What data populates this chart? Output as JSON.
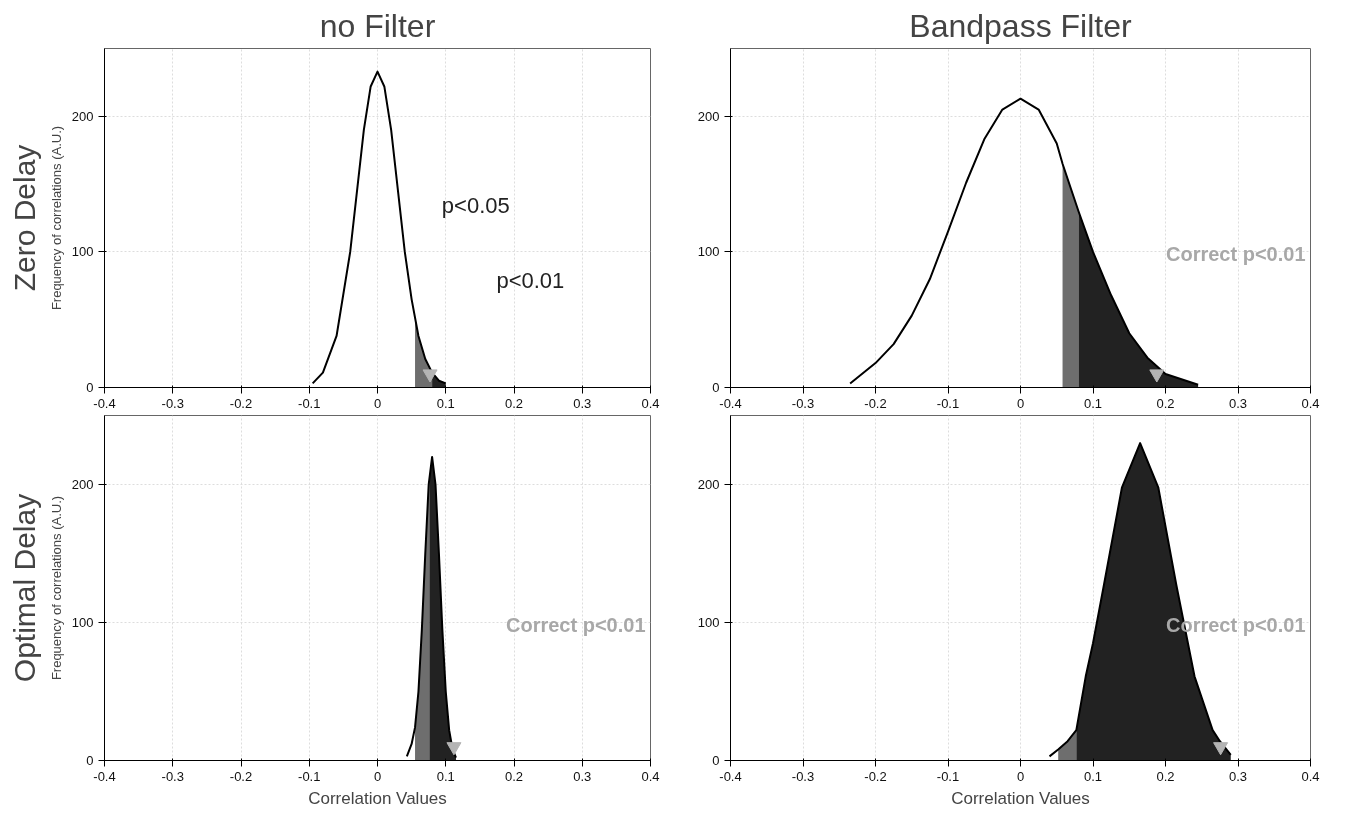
{
  "chart_data": [
    {
      "type": "line",
      "title": "no Filter",
      "subtitle": "Zero Delay",
      "ylabel": "Frequency of correlations (A.U.)",
      "xlim": [
        -0.4,
        0.4
      ],
      "ylim": [
        0,
        250
      ],
      "xticks": [
        -0.4,
        -0.3,
        -0.2,
        -0.1,
        0,
        0.1,
        0.2,
        0.3,
        0.4
      ],
      "yticks": [
        0,
        100,
        200
      ],
      "grid": true,
      "series": [
        {
          "type": "area",
          "color": "#6e6e6e",
          "x": [
            0.055,
            0.06,
            0.07,
            0.08
          ],
          "values": [
            50,
            38,
            21,
            11
          ]
        },
        {
          "type": "area",
          "color": "#222222",
          "x": [
            0.08,
            0.09,
            0.1
          ],
          "values": [
            11,
            5,
            3
          ]
        },
        {
          "color": "#000000",
          "x": [
            -0.095,
            -0.08,
            -0.06,
            -0.04,
            -0.03,
            -0.02,
            -0.01,
            0,
            0.01,
            0.02,
            0.03,
            0.04,
            0.05,
            0.06,
            0.07,
            0.08,
            0.09,
            0.1
          ],
          "values": [
            3,
            11,
            38,
            100,
            145,
            190,
            222,
            233,
            222,
            190,
            145,
            100,
            65,
            38,
            21,
            11,
            5,
            3
          ]
        },
        {
          "type": "scatter",
          "marker": "triangle",
          "color": "#b4b4b4",
          "x": [
            0.077
          ],
          "values": [
            10
          ]
        }
      ],
      "annotations": [
        "p<0.05",
        "p<0.01"
      ]
    },
    {
      "type": "line",
      "title": "Bandpass Filter",
      "xlim": [
        -0.4,
        0.4
      ],
      "ylim": [
        0,
        250
      ],
      "xticks": [
        -0.4,
        -0.3,
        -0.2,
        -0.1,
        0,
        0.1,
        0.2,
        0.3,
        0.4
      ],
      "yticks": [
        0,
        100,
        200
      ],
      "grid": true,
      "series": [
        {
          "type": "area",
          "color": "#6e6e6e",
          "x": [
            0.058,
            0.08
          ],
          "values": [
            165,
            130
          ]
        },
        {
          "type": "area",
          "color": "#222222",
          "x": [
            0.08,
            0.1,
            0.125,
            0.15,
            0.175,
            0.2,
            0.245
          ],
          "values": [
            130,
            100,
            68,
            40,
            22,
            10,
            2
          ]
        },
        {
          "color": "#000000",
          "x": [
            -0.235,
            -0.2,
            -0.175,
            -0.15,
            -0.125,
            -0.1,
            -0.075,
            -0.05,
            -0.025,
            0,
            0.025,
            0.05,
            0.058,
            0.08,
            0.1,
            0.125,
            0.15,
            0.175,
            0.2,
            0.245
          ],
          "values": [
            3,
            18,
            32,
            53,
            80,
            115,
            151,
            183,
            205,
            213,
            205,
            180,
            165,
            130,
            100,
            68,
            40,
            22,
            10,
            2
          ]
        },
        {
          "type": "scatter",
          "marker": "triangle",
          "color": "#b4b4b4",
          "x": [
            0.188
          ],
          "values": [
            10
          ]
        }
      ],
      "annotations": [
        "Correct p<0.01"
      ]
    },
    {
      "type": "line",
      "subtitle": "Optimal Delay",
      "xlabel": "Correlation Values",
      "ylabel": "Frequency of correlations (A.U.)",
      "xlim": [
        -0.4,
        0.4
      ],
      "ylim": [
        0,
        250
      ],
      "xticks": [
        -0.4,
        -0.3,
        -0.2,
        -0.1,
        0,
        0.1,
        0.2,
        0.3,
        0.4
      ],
      "yticks": [
        0,
        100,
        200
      ],
      "grid": true,
      "series": [
        {
          "type": "area",
          "color": "#6e6e6e",
          "x": [
            0.055,
            0.06,
            0.065,
            0.07,
            0.075,
            0.076
          ],
          "values": [
            24,
            50,
            95,
            150,
            200,
            205
          ]
        },
        {
          "type": "area",
          "color": "#222222",
          "x": [
            0.076,
            0.08,
            0.085,
            0.09,
            0.095,
            0.1,
            0.105,
            0.11,
            0.115
          ],
          "values": [
            205,
            220,
            200,
            150,
            95,
            50,
            22,
            8,
            2
          ]
        },
        {
          "color": "#000000",
          "x": [
            0.043,
            0.05,
            0.055,
            0.06,
            0.065,
            0.07,
            0.075,
            0.08,
            0.085,
            0.09,
            0.095,
            0.1,
            0.105,
            0.11,
            0.115
          ],
          "values": [
            3,
            12,
            24,
            50,
            95,
            150,
            200,
            220,
            200,
            150,
            95,
            50,
            22,
            8,
            2
          ]
        },
        {
          "type": "scatter",
          "marker": "triangle",
          "color": "#b4b4b4",
          "x": [
            0.112
          ],
          "values": [
            10
          ]
        }
      ],
      "annotations": [
        "Correct p<0.01"
      ]
    },
    {
      "type": "line",
      "xlabel": "Correlation Values",
      "xlim": [
        -0.4,
        0.4
      ],
      "ylim": [
        0,
        250
      ],
      "xticks": [
        -0.4,
        -0.3,
        -0.2,
        -0.1,
        0,
        0.1,
        0.2,
        0.3,
        0.4
      ],
      "yticks": [
        0,
        100,
        200
      ],
      "grid": true,
      "series": [
        {
          "type": "area",
          "color": "#6e6e6e",
          "x": [
            0.052,
            0.065,
            0.077
          ],
          "values": [
            8,
            14,
            22
          ]
        },
        {
          "type": "area",
          "color": "#222222",
          "x": [
            0.077,
            0.09,
            0.1,
            0.115,
            0.14,
            0.165,
            0.19,
            0.215,
            0.24,
            0.265,
            0.275,
            0.29
          ],
          "values": [
            22,
            61,
            85,
            127,
            198,
            230,
            198,
            127,
            61,
            22,
            14,
            4
          ]
        },
        {
          "color": "#000000",
          "x": [
            0.04,
            0.052,
            0.065,
            0.077,
            0.09,
            0.1,
            0.115,
            0.14,
            0.165,
            0.19,
            0.215,
            0.24,
            0.265,
            0.275,
            0.29
          ],
          "values": [
            3,
            8,
            14,
            22,
            61,
            85,
            127,
            198,
            230,
            198,
            127,
            61,
            22,
            14,
            4
          ]
        },
        {
          "type": "scatter",
          "marker": "triangle",
          "color": "#b4b4b4",
          "x": [
            0.276
          ],
          "values": [
            10
          ]
        }
      ],
      "annotations": [
        "Correct p<0.01"
      ]
    }
  ]
}
